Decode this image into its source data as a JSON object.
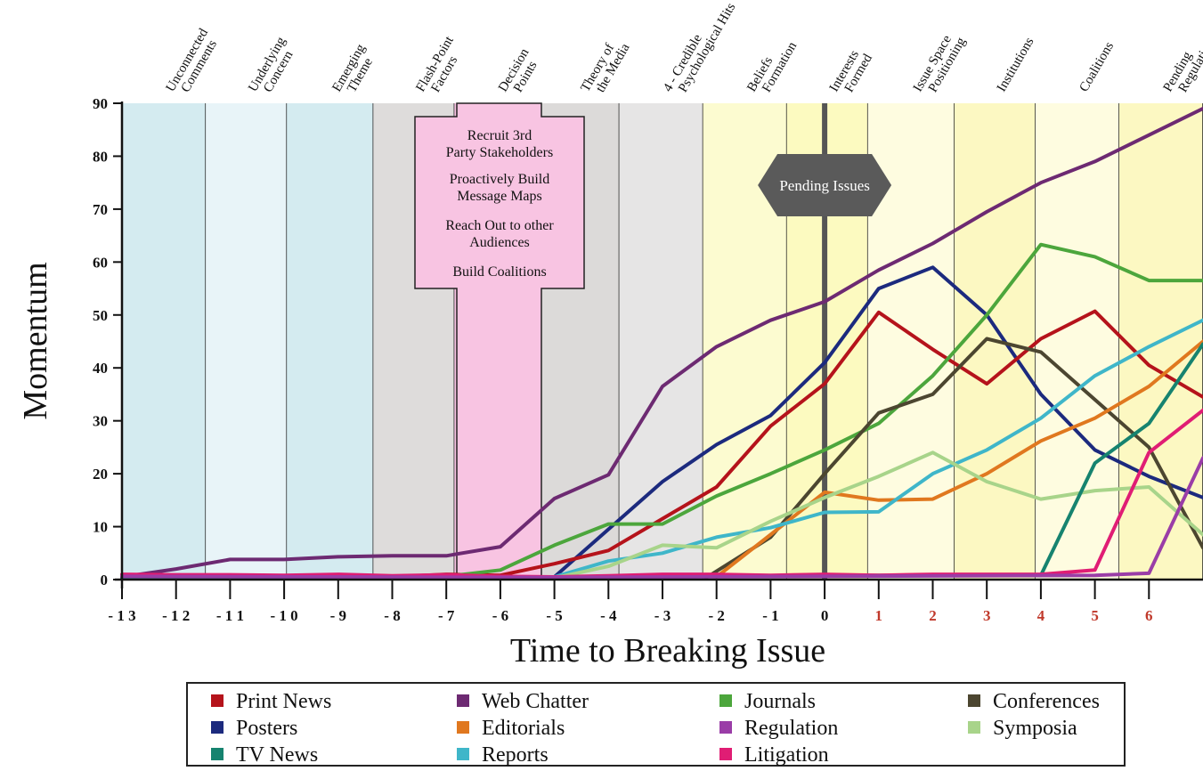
{
  "chart_data": {
    "type": "line",
    "xlabel": "Time to Breaking Issue",
    "ylabel": "Momentum",
    "xlim": [
      -13,
      7
    ],
    "ylim": [
      0,
      90
    ],
    "xticks": [
      {
        "value": -13,
        "label": "- 1 3"
      },
      {
        "value": -12,
        "label": "- 1 2"
      },
      {
        "value": -11,
        "label": "- 1 1"
      },
      {
        "value": -10,
        "label": "- 1 0"
      },
      {
        "value": -9,
        "label": "- 9"
      },
      {
        "value": -8,
        "label": "- 8"
      },
      {
        "value": -7,
        "label": "- 7"
      },
      {
        "value": -6,
        "label": "- 6"
      },
      {
        "value": -5,
        "label": "- 5"
      },
      {
        "value": -4,
        "label": "- 4"
      },
      {
        "value": -3,
        "label": "- 3"
      },
      {
        "value": -2,
        "label": "- 2"
      },
      {
        "value": -1,
        "label": "- 1"
      },
      {
        "value": 0,
        "label": "0"
      },
      {
        "value": 1,
        "label": "1",
        "color": "#c0392b"
      },
      {
        "value": 2,
        "label": "2",
        "color": "#c0392b"
      },
      {
        "value": 3,
        "label": "3",
        "color": "#c0392b"
      },
      {
        "value": 4,
        "label": "4",
        "color": "#c0392b"
      },
      {
        "value": 5,
        "label": "5",
        "color": "#c0392b"
      },
      {
        "value": 6,
        "label": "6",
        "color": "#c0392b"
      }
    ],
    "yticks": [
      0,
      10,
      20,
      30,
      40,
      50,
      60,
      70,
      80,
      90
    ],
    "phases": [
      {
        "label": "Unconnected Comments",
        "from": -13,
        "to": -11.45,
        "color": "#d4ebf0"
      },
      {
        "label": "Underlying Concern",
        "from": -11.45,
        "to": -9.95,
        "color": "#e8f4f8"
      },
      {
        "label": "Emerging Theme",
        "from": -9.95,
        "to": -8.35,
        "color": "#d4ebf0"
      },
      {
        "label": "Flash-Point Factors",
        "from": -8.35,
        "to": -6.85,
        "color": "#dedcdb"
      },
      {
        "label": "Decision Points",
        "from": -6.85,
        "to": -5.3,
        "color": "#f8c4e2"
      },
      {
        "label": "Theory of the Media",
        "from": -5.3,
        "to": -3.8,
        "color": "#dcdad9"
      },
      {
        "label": "4 - Credible Psychological Hits",
        "from": -3.8,
        "to": -2.25,
        "color": "#e6e5e5"
      },
      {
        "label": "Beliefs Formation",
        "from": -2.25,
        "to": -0.7,
        "color": "#fcfbd0"
      },
      {
        "label": "Interests Formed",
        "from": -0.7,
        "to": 0.8,
        "color": "#fcfac0"
      },
      {
        "label": "Issue Space Positioning",
        "from": 0.8,
        "to": 2.4,
        "color": "#fefce0"
      },
      {
        "label": "Institutions",
        "from": 2.4,
        "to": 3.9,
        "color": "#fcf8c2"
      },
      {
        "label": "Coalitions",
        "from": 3.9,
        "to": 5.45,
        "color": "#fefce0"
      },
      {
        "label": "Pending Regulation",
        "from": 5.45,
        "to": 7,
        "color": "#fcf8c2"
      }
    ],
    "annotations": {
      "decision_box": [
        "Recruit 3rd",
        "Party Stakeholders",
        "Proactively Build",
        "Message Maps",
        "Reach Out to other",
        "Audiences",
        "Build Coalitions"
      ],
      "pending_label": "Pending Issues"
    },
    "series": [
      {
        "name": "Web Chatter",
        "color": "#6d2a72",
        "points": [
          [
            -13,
            0.5
          ],
          [
            -12,
            2
          ],
          [
            -11,
            3.8
          ],
          [
            -10,
            3.8
          ],
          [
            -9,
            4.3
          ],
          [
            -8,
            4.5
          ],
          [
            -7,
            4.5
          ],
          [
            -6,
            6.2
          ],
          [
            -5,
            15.3
          ],
          [
            -4,
            19.8
          ],
          [
            -3,
            36.5
          ],
          [
            -2,
            44
          ],
          [
            -1,
            49
          ],
          [
            0,
            52.5
          ],
          [
            1,
            58.5
          ],
          [
            2,
            63.5
          ],
          [
            3,
            69.5
          ],
          [
            4,
            75
          ],
          [
            5,
            79
          ],
          [
            6,
            84
          ],
          [
            7,
            89
          ]
        ]
      },
      {
        "name": "Posters",
        "color": "#1c2a7e",
        "points": [
          [
            -13,
            0.4
          ],
          [
            -12,
            0.6
          ],
          [
            -11,
            0.7
          ],
          [
            -10,
            0.6
          ],
          [
            -9,
            0.7
          ],
          [
            -8,
            0.5
          ],
          [
            -7,
            0.6
          ],
          [
            -6,
            0.5
          ],
          [
            -5,
            0.5
          ],
          [
            -4,
            9.5
          ],
          [
            -3,
            18.5
          ],
          [
            -2,
            25.5
          ],
          [
            -1,
            31
          ],
          [
            0,
            41
          ],
          [
            1,
            55
          ],
          [
            2,
            59
          ],
          [
            3,
            50
          ],
          [
            4,
            35
          ],
          [
            5,
            24.5
          ],
          [
            6,
            19.5
          ],
          [
            7,
            15.5
          ]
        ]
      },
      {
        "name": "Print News",
        "color": "#b5131b",
        "points": [
          [
            -13,
            0.5
          ],
          [
            -12,
            0.8
          ],
          [
            -11,
            0.8
          ],
          [
            -10,
            0.6
          ],
          [
            -9,
            0.8
          ],
          [
            -8,
            0.5
          ],
          [
            -7,
            1
          ],
          [
            -6,
            0.8
          ],
          [
            -5,
            3
          ],
          [
            -4,
            5.5
          ],
          [
            -3,
            11.5
          ],
          [
            -2,
            17.5
          ],
          [
            -1,
            29
          ],
          [
            0,
            37
          ],
          [
            1,
            50.5
          ],
          [
            2,
            43.5
          ],
          [
            3,
            37
          ],
          [
            4,
            45.5
          ],
          [
            5,
            50.7
          ],
          [
            6,
            40.5
          ],
          [
            7,
            34.5
          ]
        ]
      },
      {
        "name": "Journals",
        "color": "#4ca63c",
        "points": [
          [
            -7,
            0.6
          ],
          [
            -6,
            1.8
          ],
          [
            -5,
            6.5
          ],
          [
            -4,
            10.5
          ],
          [
            -3,
            10.5
          ],
          [
            -2,
            15.8
          ],
          [
            -1,
            20
          ],
          [
            0,
            24.5
          ],
          [
            1,
            29.5
          ],
          [
            2,
            38.5
          ],
          [
            3,
            50
          ],
          [
            4,
            63.3
          ],
          [
            5,
            61
          ],
          [
            6,
            56.5
          ],
          [
            7,
            56.5
          ]
        ]
      },
      {
        "name": "Conferences",
        "color": "#4c4630",
        "points": [
          [
            -2.2,
            0.3
          ],
          [
            -1,
            8
          ],
          [
            0,
            20
          ],
          [
            1,
            31.5
          ],
          [
            2,
            35
          ],
          [
            3,
            45.5
          ],
          [
            4,
            43
          ],
          [
            5,
            34
          ],
          [
            6,
            25
          ],
          [
            7,
            6
          ]
        ]
      },
      {
        "name": "Editorials",
        "color": "#e0781f",
        "points": [
          [
            -2,
            0.5
          ],
          [
            -1,
            8.5
          ],
          [
            0,
            16.5
          ],
          [
            1,
            15
          ],
          [
            2,
            15.2
          ],
          [
            3,
            20
          ],
          [
            4,
            26.2
          ],
          [
            5,
            30.5
          ],
          [
            6,
            36.5
          ],
          [
            7,
            45
          ]
        ]
      },
      {
        "name": "Reports",
        "color": "#3fb6c9",
        "points": [
          [
            -5,
            0.5
          ],
          [
            -4,
            3.5
          ],
          [
            -3,
            5
          ],
          [
            -2,
            8
          ],
          [
            -1,
            9.8
          ],
          [
            0,
            12.7
          ],
          [
            1,
            12.8
          ],
          [
            2,
            20
          ],
          [
            3,
            24.5
          ],
          [
            4,
            30.5
          ],
          [
            5,
            38.5
          ],
          [
            6,
            44
          ],
          [
            7,
            49
          ]
        ]
      },
      {
        "name": "Symposia",
        "color": "#a8d48a",
        "points": [
          [
            -5,
            0.3
          ],
          [
            -4,
            2.5
          ],
          [
            -3,
            6.5
          ],
          [
            -2,
            6
          ],
          [
            -1,
            11
          ],
          [
            0,
            15.5
          ],
          [
            1,
            19.5
          ],
          [
            2,
            24
          ],
          [
            3,
            18.5
          ],
          [
            4,
            15.2
          ],
          [
            5,
            16.8
          ],
          [
            6,
            17.5
          ],
          [
            7,
            8.5
          ]
        ]
      },
      {
        "name": "TV News",
        "color": "#16836f",
        "points": [
          [
            -13,
            0.2
          ],
          [
            -6,
            0.2
          ],
          [
            0,
            0.8
          ],
          [
            4,
            0.8
          ],
          [
            5,
            22
          ],
          [
            6,
            29.5
          ],
          [
            7,
            44.5
          ]
        ]
      },
      {
        "name": "Litigation",
        "color": "#e01d74",
        "points": [
          [
            -13,
            1
          ],
          [
            -12,
            0.9
          ],
          [
            -11,
            0.9
          ],
          [
            -10,
            0.8
          ],
          [
            -9,
            1
          ],
          [
            -8,
            0.7
          ],
          [
            -7,
            0.9
          ],
          [
            -6,
            0.6
          ],
          [
            -5,
            0.5
          ],
          [
            -4,
            0.7
          ],
          [
            -3,
            1
          ],
          [
            -2,
            1
          ],
          [
            -1,
            0.8
          ],
          [
            0,
            1
          ],
          [
            1,
            0.8
          ],
          [
            2,
            1
          ],
          [
            3,
            1
          ],
          [
            4,
            1
          ],
          [
            5,
            1.8
          ],
          [
            6,
            24
          ],
          [
            7,
            32
          ]
        ]
      },
      {
        "name": "Regulation",
        "color": "#9a3da7",
        "points": [
          [
            -13,
            0.6
          ],
          [
            -5,
            0.4
          ],
          [
            0,
            0.6
          ],
          [
            5,
            0.8
          ],
          [
            6,
            1.2
          ],
          [
            7,
            23
          ]
        ]
      }
    ]
  },
  "legend": {
    "items": [
      {
        "label": "Print News",
        "color": "#b5131b"
      },
      {
        "label": "Web Chatter",
        "color": "#6d2a72"
      },
      {
        "label": "Journals",
        "color": "#4ca63c"
      },
      {
        "label": "Conferences",
        "color": "#4c4630"
      },
      {
        "label": "Posters",
        "color": "#1c2a7e"
      },
      {
        "label": "Editorials",
        "color": "#e0781f"
      },
      {
        "label": "Regulation",
        "color": "#9a3da7"
      },
      {
        "label": "Symposia",
        "color": "#a8d48a"
      },
      {
        "label": "TV News",
        "color": "#16836f"
      },
      {
        "label": "Reports",
        "color": "#3fb6c9"
      },
      {
        "label": "Litigation",
        "color": "#e01d74"
      }
    ]
  }
}
